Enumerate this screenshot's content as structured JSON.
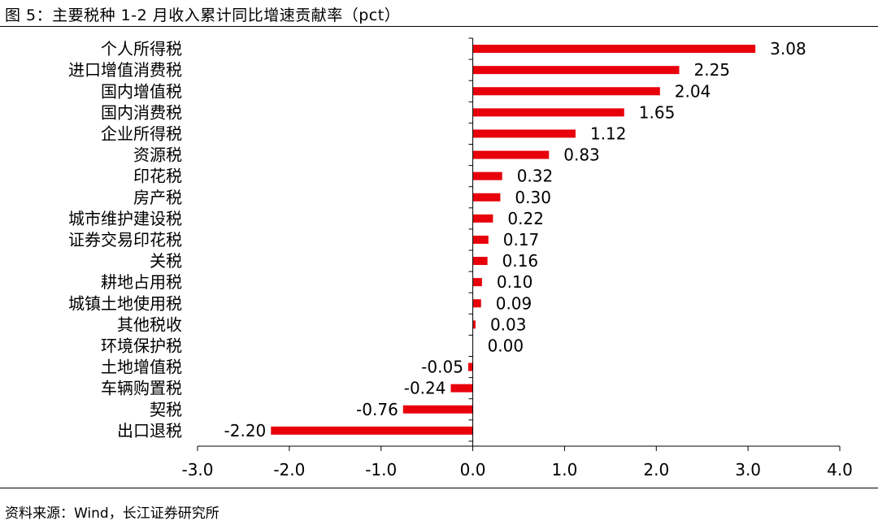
{
  "figure": {
    "title": "图 5：主要税种 1-2 月收入累计同比增速贡献率（pct）",
    "source": "资料来源：Wind，长江证券研究所"
  },
  "chart_data": {
    "type": "bar",
    "orientation": "horizontal",
    "title": "图 5：主要税种 1-2 月收入累计同比增速贡献率（pct）",
    "xlabel": "",
    "ylabel": "",
    "xlim": [
      -3.0,
      4.0
    ],
    "x_ticks": [
      "-3.0",
      "-2.0",
      "-1.0",
      "0.0",
      "1.0",
      "2.0",
      "3.0",
      "4.0"
    ],
    "x_tick_values": [
      -3,
      -2,
      -1,
      0,
      1,
      2,
      3,
      4
    ],
    "grid": false,
    "bar_color": "#e8000b",
    "categories": [
      "个人所得税",
      "进口增值消费税",
      "国内增值税",
      "国内消费税",
      "企业所得税",
      "资源税",
      "印花税",
      "房产税",
      "城市维护建设税",
      "证券交易印花税",
      "关税",
      "耕地占用税",
      "城镇土地使用税",
      "其他税收",
      "环境保护税",
      "土地增值税",
      "车辆购置税",
      "契税",
      "出口退税"
    ],
    "values": [
      3.08,
      2.25,
      2.04,
      1.65,
      1.12,
      0.83,
      0.32,
      0.3,
      0.22,
      0.17,
      0.16,
      0.1,
      0.09,
      0.03,
      0.0,
      -0.05,
      -0.24,
      -0.76,
      -2.2
    ],
    "value_labels": [
      "3.08",
      "2.25",
      "2.04",
      "1.65",
      "1.12",
      "0.83",
      "0.32",
      "0.30",
      "0.22",
      "0.17",
      "0.16",
      "0.10",
      "0.09",
      "0.03",
      "0.00",
      "-0.05",
      "-0.24",
      "-0.76",
      "-2.20"
    ]
  }
}
